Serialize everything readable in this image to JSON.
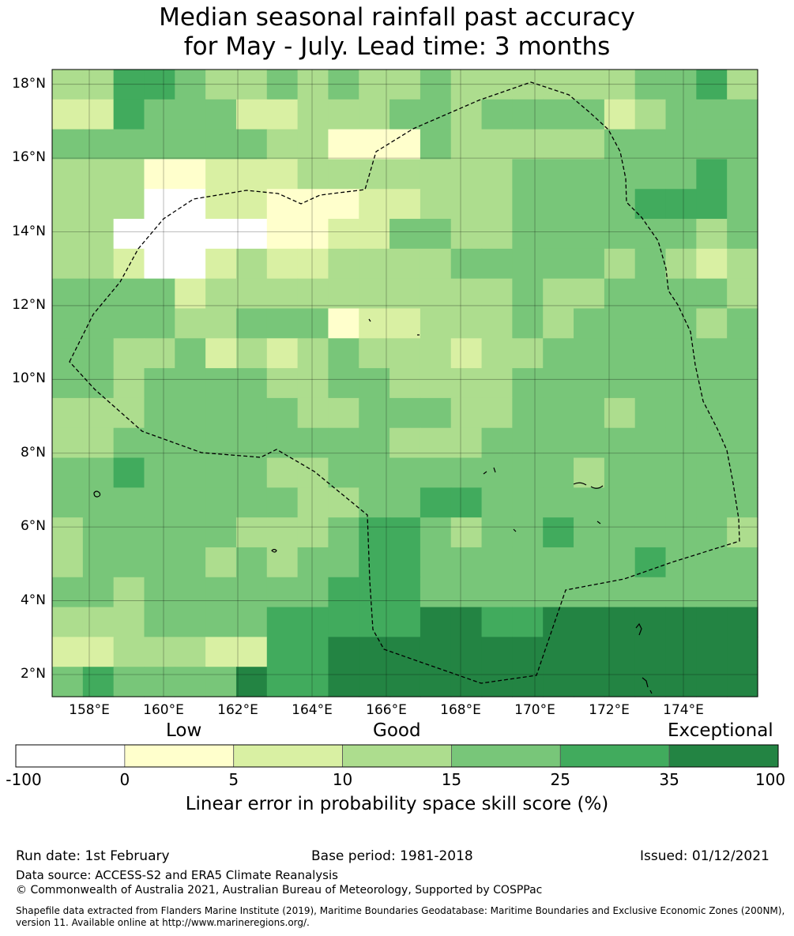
{
  "title_line1": "Median seasonal rainfall past accuracy",
  "title_line2": "for May - July. Lead time: 3 months",
  "map": {
    "lon_range": [
      157.0,
      176.0
    ],
    "lat_range": [
      1.4,
      18.4
    ],
    "y_ticks": [
      "18°N",
      "16°N",
      "14°N",
      "12°N",
      "10°N",
      "8°N",
      "6°N",
      "4°N",
      "2°N"
    ],
    "x_ticks": [
      "158°E",
      "160°E",
      "162°E",
      "164°E",
      "166°E",
      "168°E",
      "170°E",
      "172°E",
      "174°E"
    ],
    "grid_lines": true,
    "dominant_pattern": "higher skill (dark green) in the south-east; low skill (white/yellow) in the north-west around 14-16°N"
  },
  "colorbar": {
    "categories": [
      "Low",
      "Good",
      "Exceptional"
    ],
    "ticks": [
      "-100",
      "0",
      "5",
      "10",
      "15",
      "25",
      "35",
      "100"
    ],
    "colors": [
      "#ffffff",
      "#ffffcc",
      "#d9f0a3",
      "#addd8e",
      "#78c679",
      "#41ab5d",
      "#238443"
    ],
    "label": "Linear error in probability space skill score (%)"
  },
  "footer": {
    "run_date": "Run date: 1st February",
    "base_period": "Base period: 1981-2018",
    "issued": "Issued: 01/12/2021",
    "data_source": "Data source: ACCESS-S2 and ERA5 Climate Reanalysis",
    "copyright": "© Commonwealth of Australia 2021, Australian Bureau of Meteorology, Supported by COSPPac",
    "shapefile": "Shapefile data extracted from Flanders Marine Institute (2019), Maritime Boundaries Geodatabase: Maritime Boundaries and Exclusive Economic Zones (200NM), version 11. Available online at http://www.marineregions.org/."
  }
}
